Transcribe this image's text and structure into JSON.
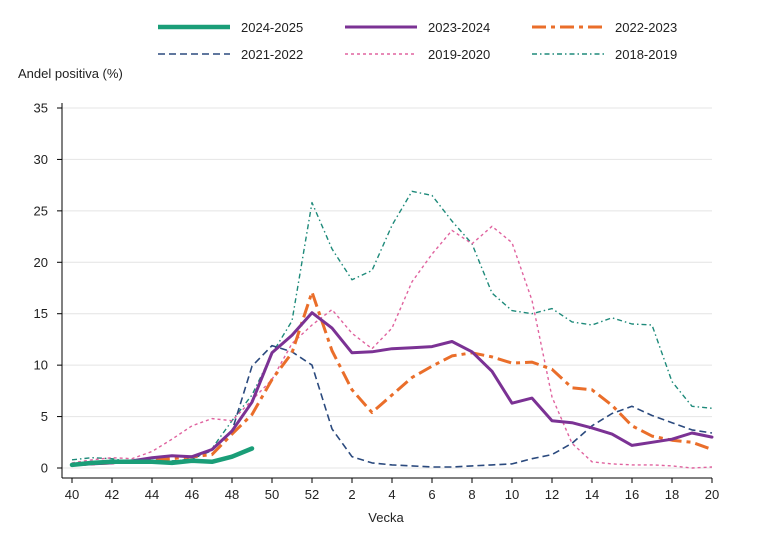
{
  "chart_data": {
    "type": "line",
    "title": "",
    "ylabel": "Andel positiva (%)",
    "xlabel": "Vecka",
    "ylim": [
      0,
      35
    ],
    "yticks": [
      0,
      5,
      10,
      15,
      20,
      25,
      30,
      35
    ],
    "weeks": [
      40,
      41,
      42,
      43,
      44,
      45,
      46,
      47,
      48,
      49,
      50,
      51,
      52,
      1,
      2,
      3,
      4,
      5,
      6,
      7,
      8,
      9,
      10,
      11,
      12,
      13,
      14,
      15,
      16,
      17,
      18,
      19,
      20
    ],
    "x_tick_labels": [
      "40",
      "42",
      "44",
      "46",
      "48",
      "50",
      "52",
      "2",
      "4",
      "6",
      "8",
      "10",
      "12",
      "14",
      "16",
      "18",
      "20"
    ],
    "grid": true,
    "legend_position": "top",
    "series": [
      {
        "name": "2024-2025",
        "color": "#1a9e78",
        "style": "solid-thick",
        "values": [
          0.3,
          0.5,
          0.6,
          0.6,
          0.6,
          0.5,
          0.7,
          0.6,
          1.1,
          1.9
        ]
      },
      {
        "name": "2023-2024",
        "color": "#7b3294",
        "style": "solid",
        "values": [
          0.3,
          0.4,
          0.5,
          0.7,
          1.0,
          1.2,
          1.1,
          1.8,
          3.6,
          6.4,
          11.2,
          12.9,
          15.1,
          13.6,
          11.2,
          11.3,
          11.6,
          11.7,
          11.8,
          12.3,
          11.3,
          9.4,
          6.3,
          6.8,
          4.6,
          4.4,
          3.9,
          3.3,
          2.2,
          2.5,
          2.8,
          3.4,
          3.0
        ]
      },
      {
        "name": "2022-2023",
        "color": "#ea6e2a",
        "style": "dash-dot",
        "values": [
          0.3,
          0.4,
          0.5,
          0.6,
          0.8,
          0.9,
          1.1,
          1.3,
          3.3,
          5.2,
          8.6,
          11.2,
          17.1,
          11.4,
          7.6,
          5.4,
          7.1,
          8.8,
          9.9,
          10.9,
          11.2,
          10.8,
          10.2,
          10.3,
          9.6,
          7.8,
          7.6,
          6.1,
          4.1,
          3.1,
          2.7,
          2.5,
          1.8
        ]
      },
      {
        "name": "2021-2022",
        "color": "#2b4a7e",
        "style": "dash",
        "values": [
          0.3,
          0.4,
          0.5,
          0.5,
          0.5,
          0.6,
          0.9,
          1.7,
          3.6,
          9.9,
          11.9,
          11.3,
          10.0,
          3.8,
          1.1,
          0.5,
          0.3,
          0.2,
          0.1,
          0.1,
          0.2,
          0.3,
          0.4,
          0.9,
          1.3,
          2.4,
          4.1,
          5.3,
          6.0,
          5.1,
          4.4,
          3.7,
          3.4
        ]
      },
      {
        "name": "2019-2020",
        "color": "#e0639f",
        "style": "dot",
        "values": [
          0.5,
          0.8,
          1.0,
          0.9,
          1.6,
          2.8,
          4.1,
          4.8,
          4.6,
          6.6,
          8.6,
          12.1,
          13.9,
          15.4,
          13.1,
          11.6,
          13.6,
          18.1,
          20.8,
          23.1,
          21.8,
          23.5,
          21.9,
          16.3,
          6.9,
          2.4,
          0.6,
          0.4,
          0.3,
          0.3,
          0.2,
          0.0,
          0.1
        ]
      },
      {
        "name": "2018-2019",
        "color": "#1e8a7a",
        "style": "dash-dot-small",
        "values": [
          0.8,
          1.0,
          0.9,
          0.6,
          0.6,
          0.7,
          0.8,
          1.9,
          4.6,
          7.1,
          11.1,
          14.3,
          25.8,
          21.3,
          18.3,
          19.2,
          23.6,
          26.9,
          26.5,
          24.0,
          21.8,
          17.0,
          15.3,
          15.0,
          15.5,
          14.2,
          13.9,
          14.6,
          14.0,
          13.9,
          8.4,
          6.0,
          5.8
        ]
      }
    ]
  }
}
